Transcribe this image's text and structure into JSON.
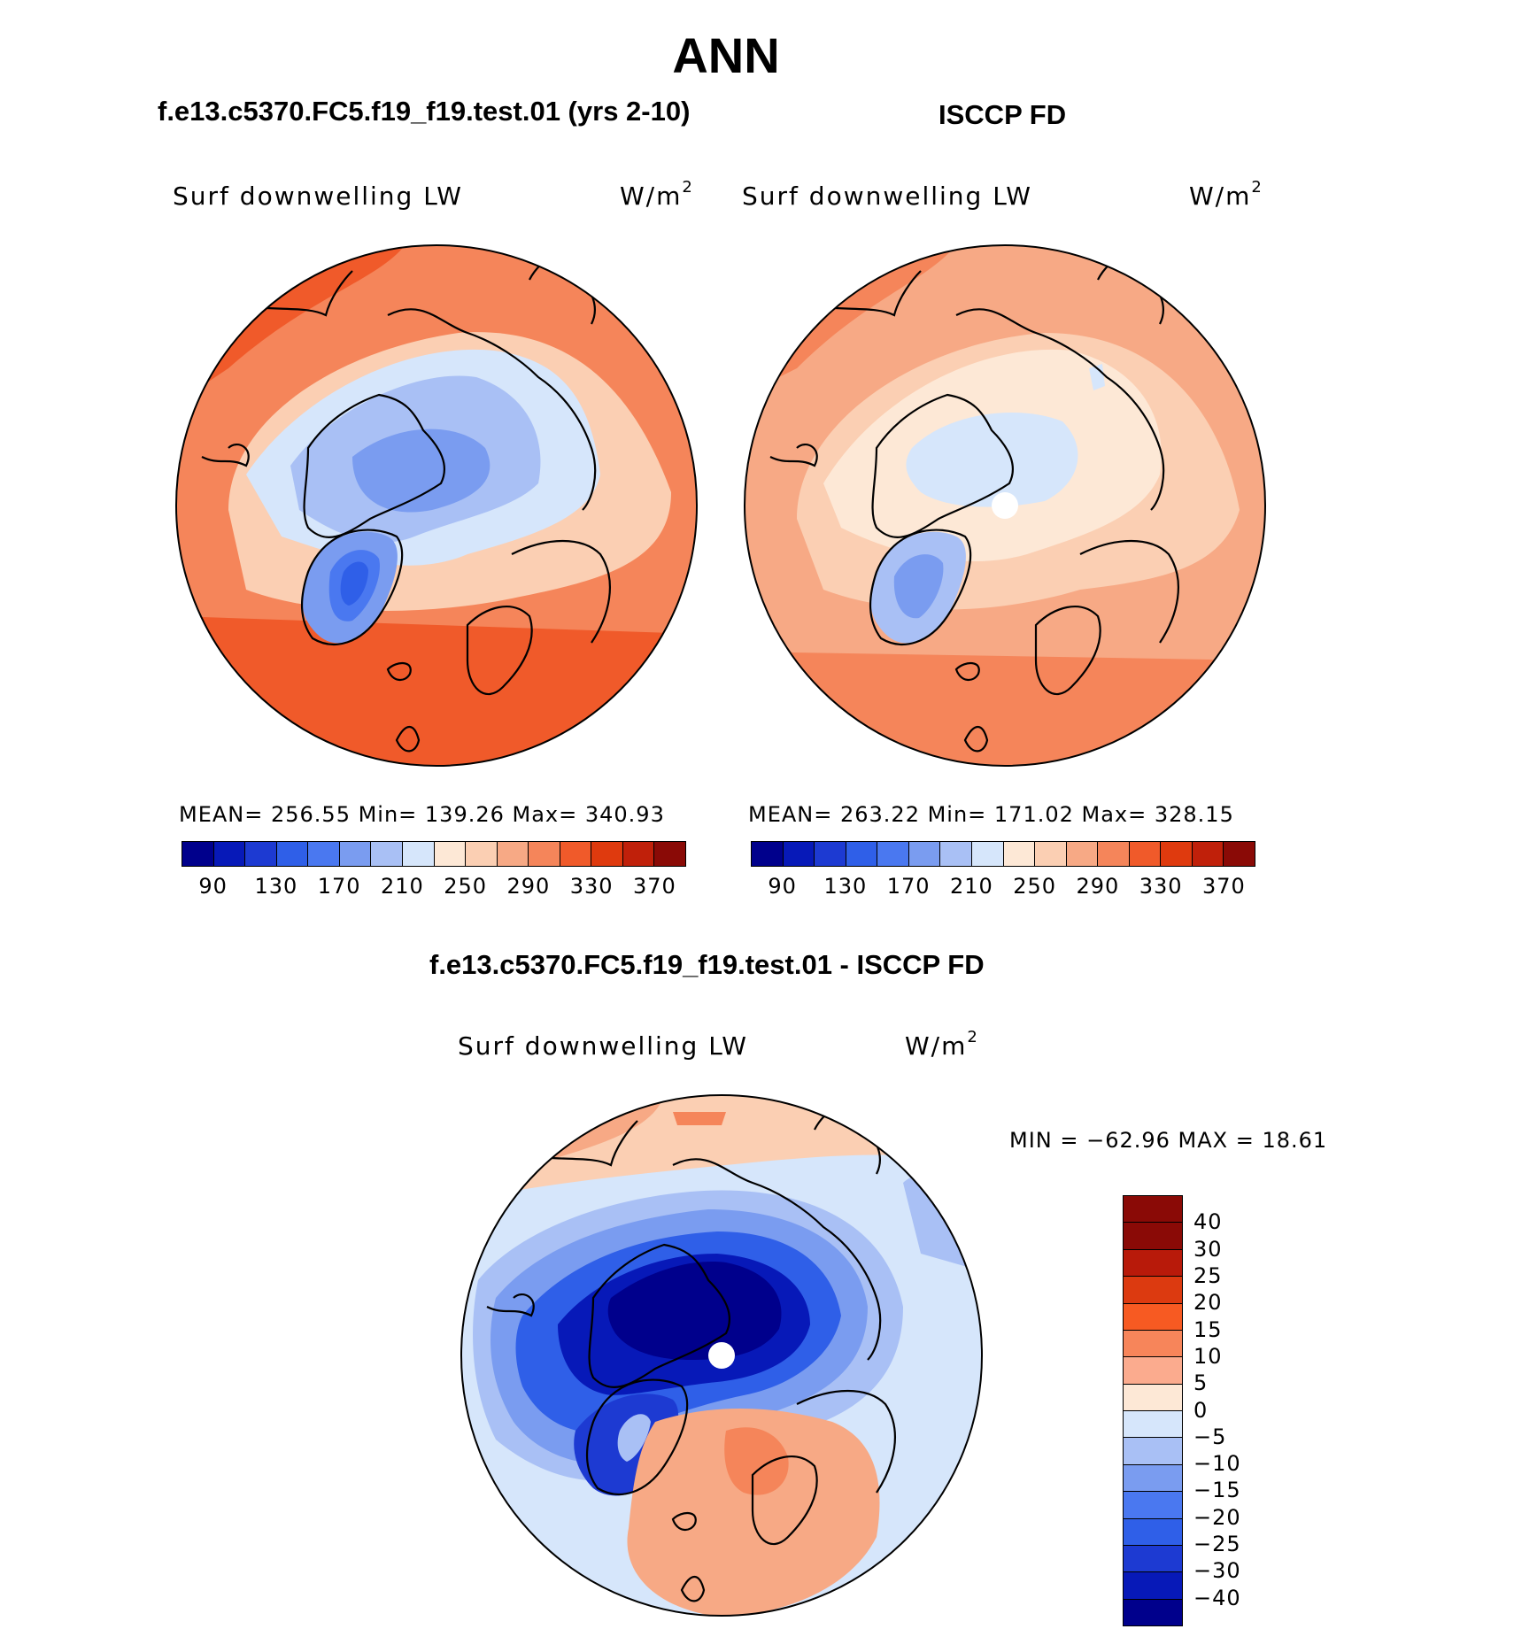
{
  "main_title": "ANN",
  "panels": [
    {
      "title": "f.e13.c5370.FC5.f19_f19.test.01 (yrs 2-10)",
      "var_label": "Surf downwelling LW",
      "units_base": "W/m",
      "units_sup": "2",
      "stats": "MEAN= 256.55   Min= 139.26   Max= 340.93"
    },
    {
      "title": "ISCCP FD",
      "var_label": "Surf downwelling LW",
      "units_base": "W/m",
      "units_sup": "2",
      "stats": "MEAN= 263.22   Min= 171.02   Max= 328.15"
    },
    {
      "title": "f.e13.c5370.FC5.f19_f19.test.01 - ISCCP FD",
      "var_label": "Surf downwelling LW",
      "units_base": "W/m",
      "units_sup": "2",
      "stats": "MIN = −62.96 MAX =   18.61"
    }
  ],
  "colorbar_abs": {
    "colors": [
      "#00008c",
      "#0719b8",
      "#1d3ad2",
      "#2f5fe8",
      "#4a78f0",
      "#7a9cf0",
      "#a9c0f5",
      "#d6e6fb",
      "#fde8d6",
      "#fbcfb3",
      "#f7a985",
      "#f5855a",
      "#f05a2a",
      "#df3a0e",
      "#c0200a",
      "#8a0a06"
    ],
    "labels": [
      "90",
      "130",
      "170",
      "210",
      "250",
      "290",
      "330",
      "370"
    ]
  },
  "colorbar_diff": {
    "colors": [
      "#8a0a06",
      "#b81a0a",
      "#dc3a10",
      "#f75a22",
      "#f7855a",
      "#fbab8e",
      "#fde8d6",
      "#d6e6fb",
      "#a9c0f5",
      "#7a9cf0",
      "#4a78f0",
      "#2f5fe8",
      "#1d3ad2",
      "#0719b8",
      "#00008c"
    ],
    "labels": [
      "40",
      "30",
      "25",
      "20",
      "15",
      "10",
      "5",
      "0",
      "−5",
      "−10",
      "−15",
      "−20",
      "−25",
      "−30",
      "−40"
    ]
  }
}
